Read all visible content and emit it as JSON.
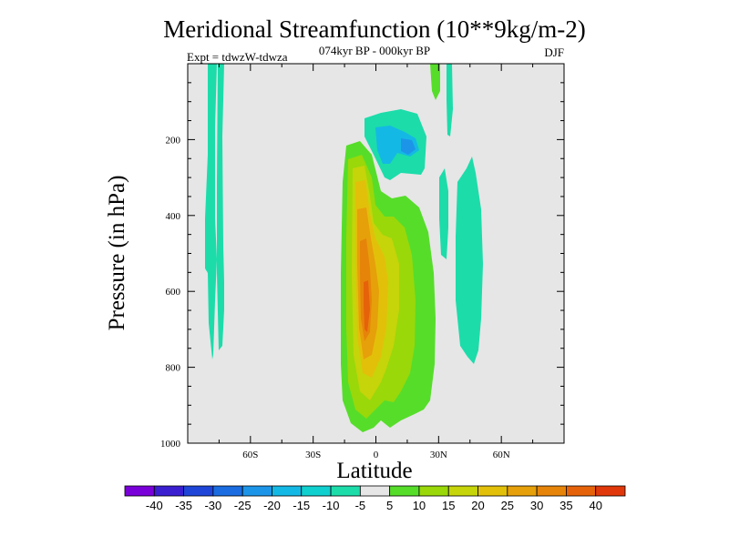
{
  "chart_data": {
    "type": "heatmap",
    "title": "Meridional Streamfunction (10**9kg/m-2)",
    "subtitle": "074kyr BP - 000kyr BP",
    "left_label": "Expt = tdwzW-tdwza",
    "right_label": "DJF",
    "xlabel": "Latitude",
    "ylabel": "Pressure (in hPa)",
    "xlim": [
      -90,
      90
    ],
    "ylim": [
      1000,
      0
    ],
    "x_ticks": [
      {
        "value": -60,
        "label": "60S"
      },
      {
        "value": -30,
        "label": "30S"
      },
      {
        "value": 0,
        "label": "0"
      },
      {
        "value": 30,
        "label": "30N"
      },
      {
        "value": 60,
        "label": "60N"
      }
    ],
    "y_ticks": [
      {
        "value": 200,
        "label": "200"
      },
      {
        "value": 400,
        "label": "400"
      },
      {
        "value": 600,
        "label": "600"
      },
      {
        "value": 800,
        "label": "800"
      },
      {
        "value": 1000,
        "label": "1000"
      }
    ],
    "background_color": "#e6e6e6",
    "colorbar": {
      "colors": [
        "#7a00d9",
        "#3a1fd0",
        "#1f45d8",
        "#1a6ce0",
        "#1c95e8",
        "#14b8e4",
        "#10cfcf",
        "#1cdcaa",
        "#e6e6e6",
        "#56dd2a",
        "#9ad80a",
        "#c6d40a",
        "#e2c00a",
        "#e6a00a",
        "#e6840a",
        "#e6620a",
        "#e0380a"
      ],
      "labels": [
        "-40",
        "-35",
        "-30",
        "-25",
        "-20",
        "-15",
        "-10",
        "-5",
        "5",
        "10",
        "15",
        "20",
        "25",
        "30",
        "35",
        "40"
      ]
    },
    "features": [
      {
        "name": "southern-high-latitude-band",
        "level": -5,
        "x_range": [
          -80,
          -70
        ],
        "p_range": [
          0,
          770
        ]
      },
      {
        "name": "upper-tropical-cell",
        "level": -5,
        "x_range": [
          2,
          22
        ],
        "p_range": [
          130,
          260
        ]
      },
      {
        "name": "upper-tropical-core",
        "level": -10,
        "x_range": [
          2,
          20
        ],
        "p_range": [
          160,
          230
        ]
      },
      {
        "name": "northern-subtropical-band",
        "level": -5,
        "x_range": [
          30,
          48
        ],
        "p_range": [
          300,
          780
        ]
      },
      {
        "name": "northern-upper-band",
        "level": 5,
        "x_range": [
          25,
          30
        ],
        "p_range": [
          0,
          110
        ]
      },
      {
        "name": "main-tropical-cell",
        "level": 5,
        "x_range": [
          -15,
          28
        ],
        "p_range": [
          220,
          970
        ]
      },
      {
        "name": "main-tropical-peak",
        "level": 35,
        "x_range": [
          -4,
          -2
        ],
        "p_range": [
          540,
          720
        ]
      }
    ]
  }
}
